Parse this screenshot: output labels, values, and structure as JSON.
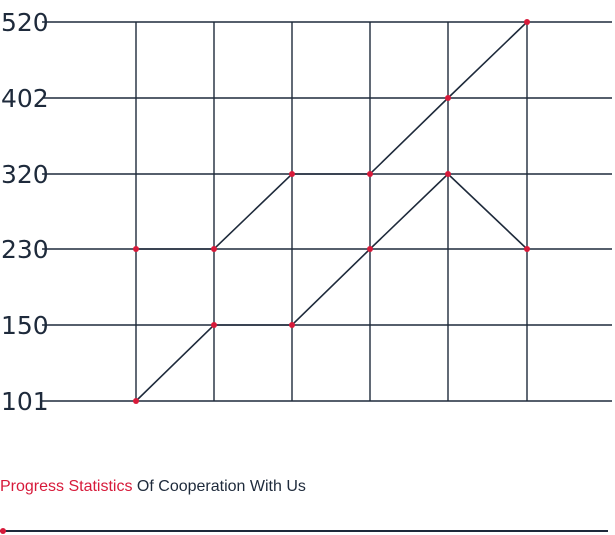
{
  "colors": {
    "grid": "#1e2a3b",
    "line": "#1e2a3b",
    "marker": "#d71a3a",
    "text": "#1e2a3b",
    "accent": "#d71a3a"
  },
  "chart_data": {
    "type": "line",
    "y_ticks": [
      "520",
      "402",
      "320",
      "230",
      "150",
      "101"
    ],
    "y_tick_values": [
      520,
      402,
      320,
      230,
      150,
      101
    ],
    "ylim": [
      101,
      520
    ],
    "x_positions": [
      1,
      2,
      3,
      4,
      5,
      6
    ],
    "grid": true,
    "legend": "none",
    "series": [
      {
        "x": [
          1,
          2,
          3,
          4,
          5,
          6
        ],
        "values": [
          230,
          230,
          320,
          320,
          402,
          520
        ]
      },
      {
        "x": [
          1,
          2,
          3,
          4,
          5,
          6
        ],
        "values": [
          101,
          150,
          150,
          230,
          320,
          230
        ]
      }
    ]
  },
  "caption": {
    "accent": "Progress Statistics",
    "rest": " Of Cooperation With Us"
  },
  "progress": {
    "value": 0
  }
}
